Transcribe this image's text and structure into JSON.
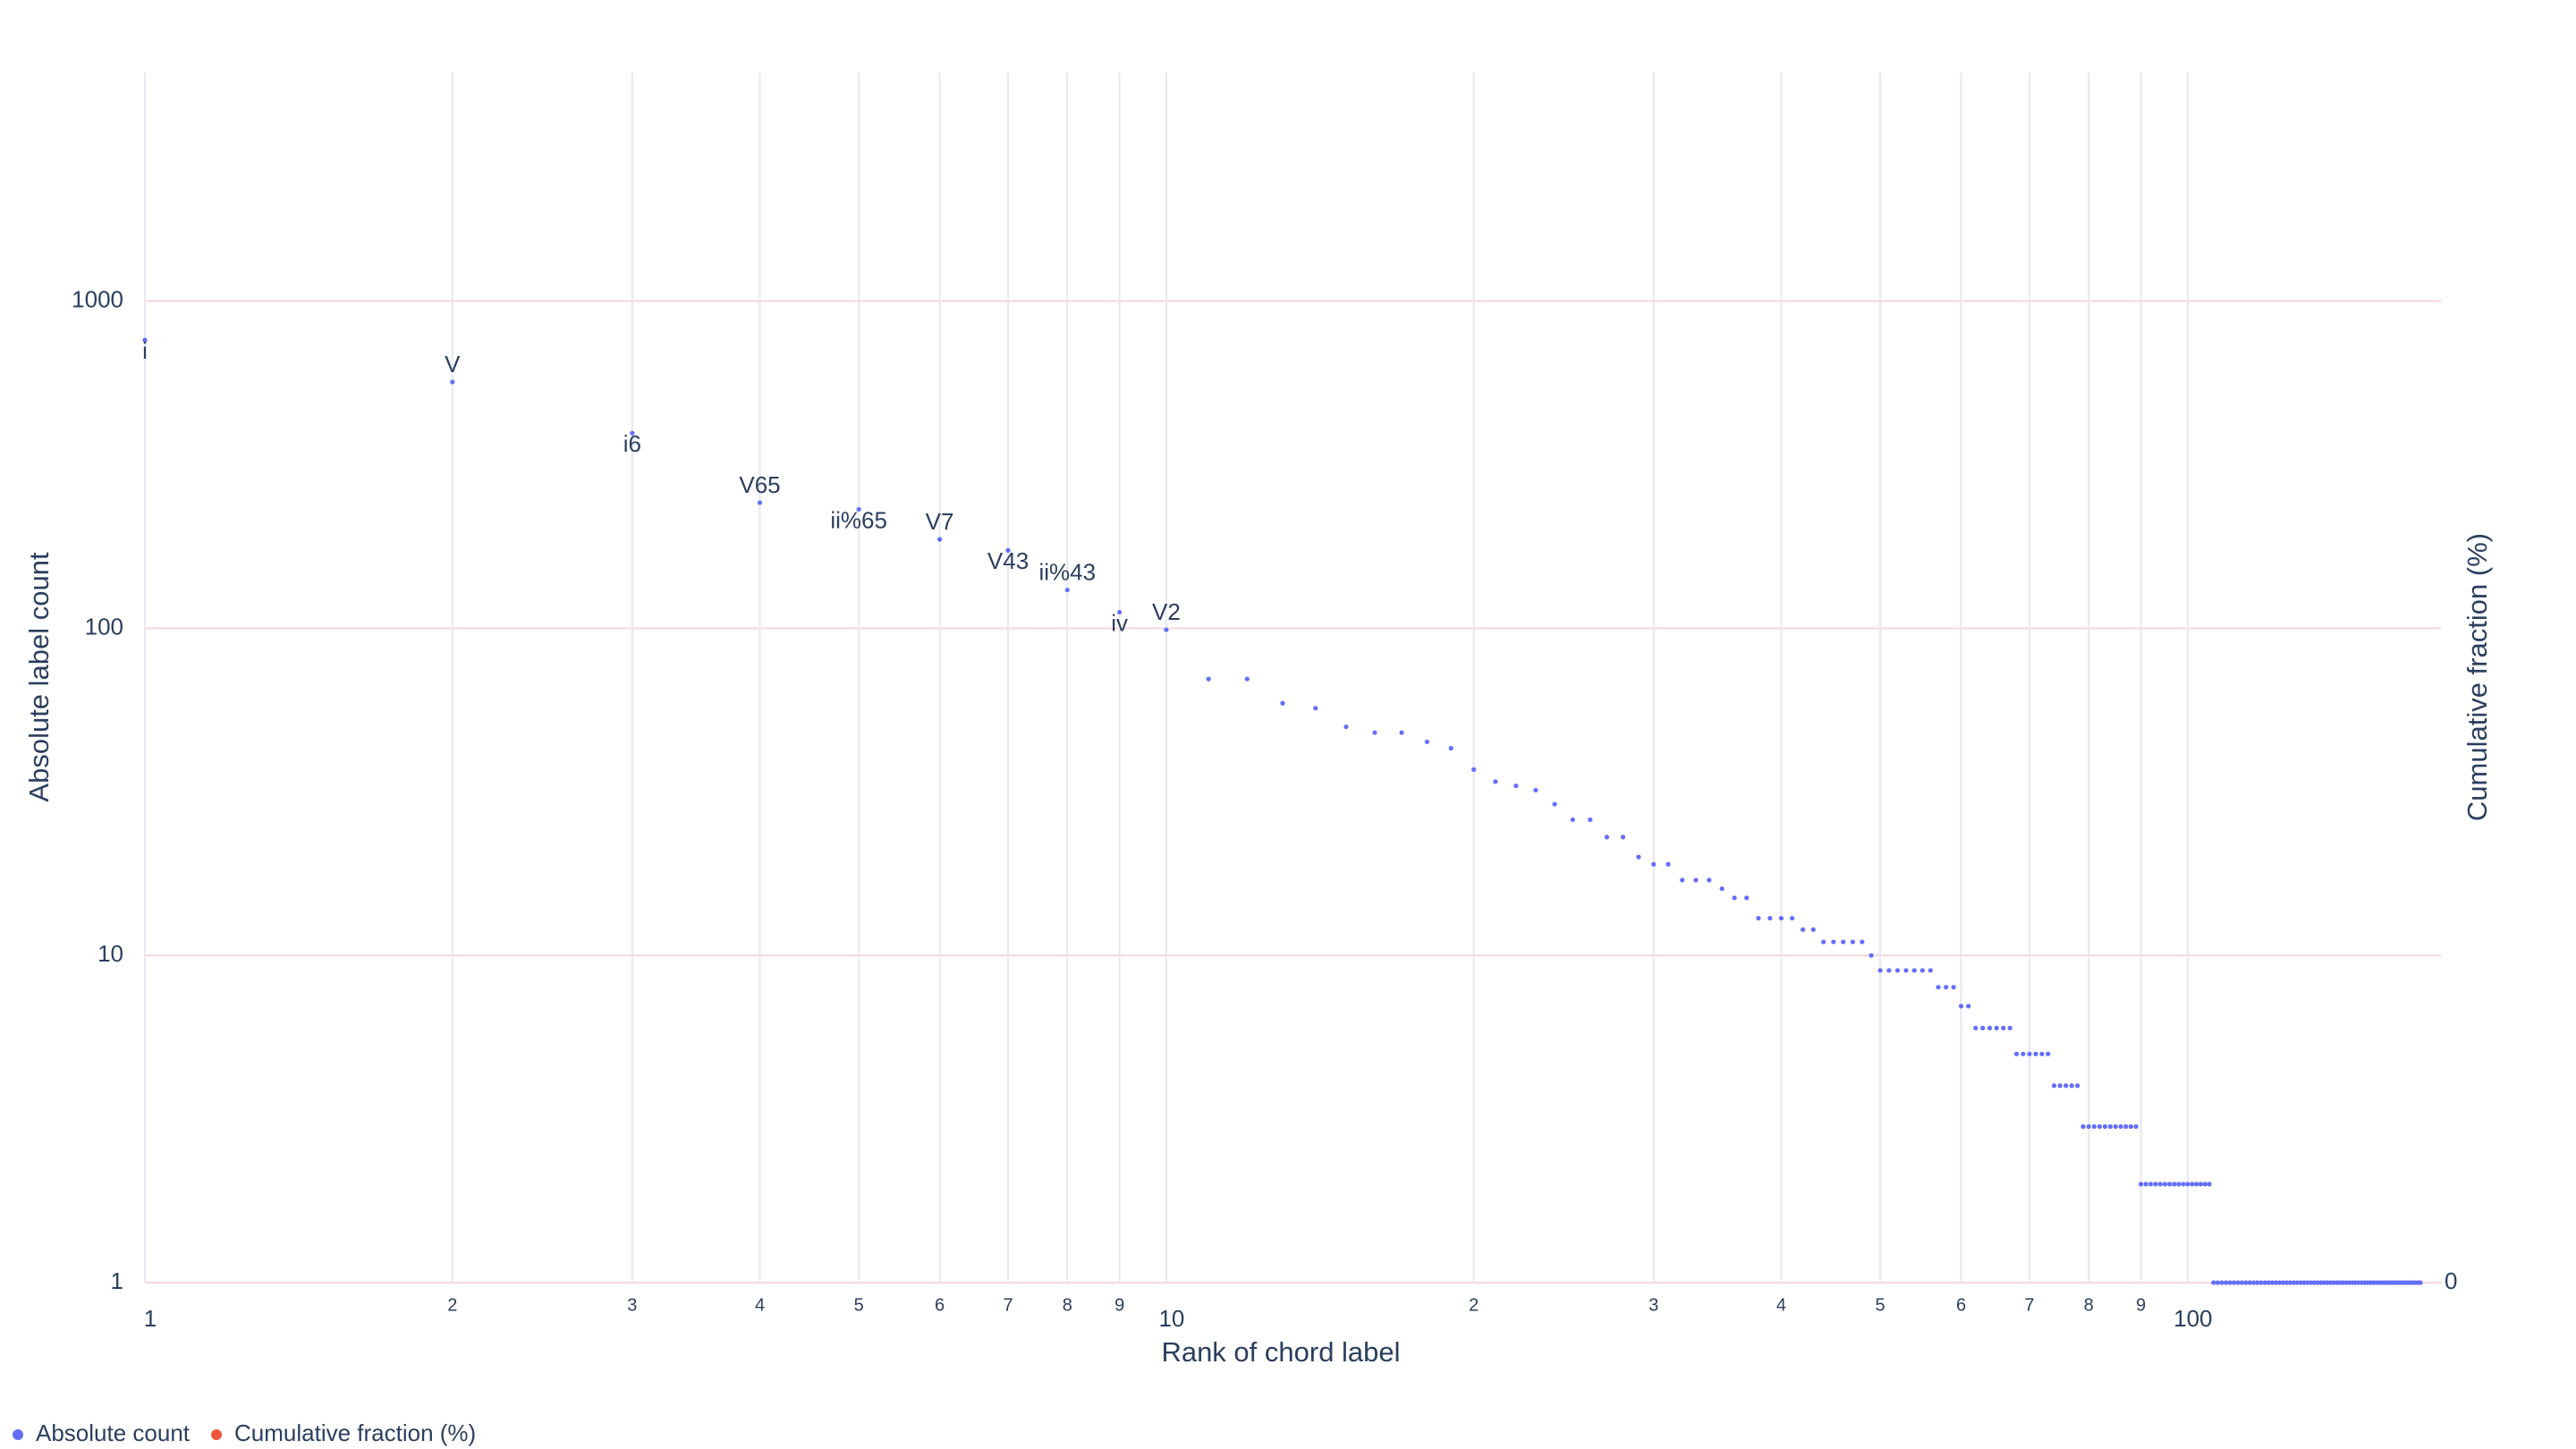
{
  "chart_data": {
    "type": "scatter",
    "x_label": "Rank of chord label",
    "y_label": "Absolute label count",
    "y2_label": "Cumulative fraction (%)",
    "log_x": true,
    "log_y": true,
    "grid": true,
    "legend": "bottom-left",
    "xlim": [
      1,
      177
    ],
    "ylim": [
      1,
      5000
    ],
    "xticks": [
      1,
      2,
      3,
      4,
      5,
      6,
      7,
      8,
      9,
      10,
      {
        "value": 20,
        "label": "2"
      },
      {
        "value": 30,
        "label": "3"
      },
      {
        "value": 40,
        "label": "4"
      },
      {
        "value": 50,
        "label": "5"
      },
      {
        "value": 60,
        "label": "6"
      },
      {
        "value": 70,
        "label": "7"
      },
      {
        "value": 80,
        "label": "8"
      },
      {
        "value": 90,
        "label": "9"
      },
      100
    ],
    "yticks": [
      1,
      10,
      100,
      1000
    ],
    "y2ticks": [
      0
    ],
    "x": [
      1,
      2,
      3,
      4,
      5,
      6,
      7,
      8,
      9,
      10,
      11,
      12,
      13,
      14,
      15,
      16,
      17,
      18,
      19,
      20,
      21,
      22,
      23,
      24,
      25,
      26,
      27,
      28,
      29,
      30,
      31,
      32,
      33,
      34,
      35,
      36,
      37,
      38,
      39,
      40,
      41,
      42,
      43,
      44,
      45,
      46,
      47,
      48,
      49,
      50,
      51,
      52,
      53,
      54,
      55,
      56,
      57,
      58,
      59,
      60,
      61,
      62,
      63,
      64,
      65,
      66,
      67,
      68,
      69,
      70,
      71,
      72,
      73,
      74,
      75,
      76,
      77,
      78,
      79,
      80,
      81,
      82,
      83,
      84,
      85,
      86,
      87,
      88,
      89,
      90,
      91,
      92,
      93,
      94,
      95,
      96,
      97,
      98,
      99,
      100,
      101,
      102,
      103,
      104,
      105,
      106,
      107,
      108,
      109,
      110,
      111,
      112,
      113,
      114,
      115,
      116,
      117,
      118,
      119,
      120,
      121,
      122,
      123,
      124,
      125,
      126,
      127,
      128,
      129,
      130,
      131,
      132,
      133,
      134,
      135,
      136,
      137,
      138,
      139,
      140,
      141,
      142,
      143,
      144,
      145,
      146,
      147,
      148,
      149,
      150,
      151,
      152,
      153,
      154,
      155,
      156,
      157,
      158,
      159,
      160,
      161,
      162,
      163,
      164,
      165,
      166,
      167,
      168,
      169
    ],
    "point_labels": [
      "i",
      "V",
      "i6",
      "V65",
      "ii%65",
      "V7",
      "V43",
      "ii%43",
      "iv",
      "V2"
    ],
    "series": [
      {
        "name": "Absolute count",
        "color": "#636efa",
        "values": [
          760,
          566,
          395,
          242,
          231,
          187,
          173,
          131,
          112,
          99,
          70,
          70,
          59,
          57,
          50,
          48,
          48,
          45,
          43,
          37,
          34,
          33,
          32,
          29,
          26,
          26,
          23,
          23,
          20,
          19,
          19,
          17,
          17,
          17,
          16,
          15,
          15,
          13,
          13,
          13,
          13,
          12,
          12,
          11,
          11,
          11,
          11,
          11,
          10,
          9,
          9,
          9,
          9,
          9,
          9,
          9,
          8,
          8,
          8,
          7,
          7,
          6,
          6,
          6,
          6,
          6,
          6,
          5,
          5,
          5,
          5,
          5,
          5,
          4,
          4,
          4,
          4,
          4,
          3,
          3,
          3,
          3,
          3,
          3,
          3,
          3,
          3,
          3,
          3,
          2,
          2,
          2,
          2,
          2,
          2,
          2,
          2,
          2,
          2,
          2,
          2,
          2,
          2,
          2,
          2,
          1,
          1,
          1,
          1,
          1,
          1,
          1,
          1,
          1,
          1,
          1,
          1,
          1,
          1,
          1,
          1,
          1,
          1,
          1,
          1,
          1,
          1,
          1,
          1,
          1,
          1,
          1,
          1,
          1,
          1,
          1,
          1,
          1,
          1,
          1,
          1,
          1,
          1,
          1,
          1,
          1,
          1,
          1,
          1,
          1,
          1,
          1,
          1,
          1,
          1,
          1,
          1,
          1,
          1,
          1,
          1,
          1,
          1,
          1,
          1,
          1,
          1,
          1,
          1
        ]
      },
      {
        "name": "Cumulative fraction (%)",
        "color": "#ef553b",
        "axis": "y2"
      }
    ]
  }
}
